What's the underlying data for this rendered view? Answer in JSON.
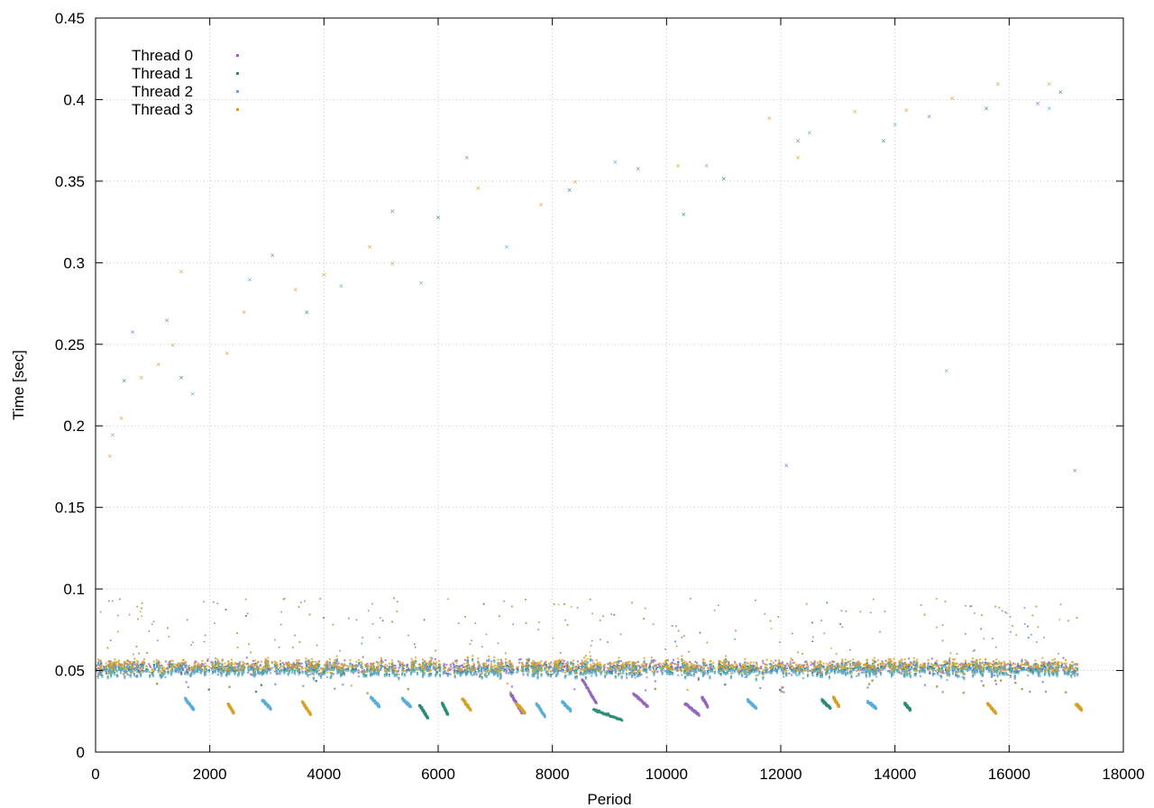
{
  "chart_data": {
    "type": "scatter",
    "title": "",
    "xlabel": "Period",
    "ylabel": "Time [sec]",
    "xlim": [
      0,
      18000
    ],
    "ylim": [
      0,
      0.45
    ],
    "x_ticks": [
      "0",
      "2000",
      "4000",
      "6000",
      "8000",
      "10000",
      "12000",
      "14000",
      "16000",
      "18000"
    ],
    "y_ticks": [
      "0",
      "0.05",
      "0.1",
      "0.15",
      "0.2",
      "0.25",
      "0.3",
      "0.35",
      "0.4",
      "0.45"
    ],
    "grid": true,
    "legend_position": "top-left",
    "series": [
      {
        "name": "Thread 0",
        "color": "#9467bd",
        "baseline": 0.052,
        "low_clusters": [
          {
            "x": [
              7250,
              7450
            ],
            "y": [
              0.036,
              0.024
            ]
          },
          {
            "x": [
              8500,
              8750
            ],
            "y": [
              0.045,
              0.03
            ]
          },
          {
            "x": [
              9400,
              9650
            ],
            "y": [
              0.036,
              0.028
            ]
          },
          {
            "x": [
              10300,
              10550
            ],
            "y": [
              0.03,
              0.023
            ]
          },
          {
            "x": [
              10600,
              10700
            ],
            "y": [
              0.034,
              0.028
            ]
          }
        ],
        "outliers": [
          {
            "x": 650,
            "y": 0.258
          },
          {
            "x": 1250,
            "y": 0.265
          },
          {
            "x": 3100,
            "y": 0.305
          },
          {
            "x": 5200,
            "y": 0.332
          },
          {
            "x": 6500,
            "y": 0.365
          },
          {
            "x": 9500,
            "y": 0.358
          },
          {
            "x": 12300,
            "y": 0.375
          },
          {
            "x": 14600,
            "y": 0.39
          },
          {
            "x": 16500,
            "y": 0.398
          },
          {
            "x": 12100,
            "y": 0.176
          },
          {
            "x": 17150,
            "y": 0.173
          }
        ]
      },
      {
        "name": "Thread 1",
        "color": "#2a8c78",
        "baseline": 0.051,
        "low_clusters": [
          {
            "x": [
              5650,
              5800
            ],
            "y": [
              0.029,
              0.021
            ]
          },
          {
            "x": [
              6050,
              6150
            ],
            "y": [
              0.03,
              0.023
            ]
          },
          {
            "x": [
              8700,
              9200
            ],
            "y": [
              0.026,
              0.02
            ]
          },
          {
            "x": [
              12700,
              12850
            ],
            "y": [
              0.032,
              0.027
            ]
          },
          {
            "x": [
              14150,
              14250
            ],
            "y": [
              0.03,
              0.026
            ]
          }
        ],
        "outliers": [
          {
            "x": 500,
            "y": 0.228
          },
          {
            "x": 1500,
            "y": 0.23
          },
          {
            "x": 3700,
            "y": 0.27
          },
          {
            "x": 6000,
            "y": 0.328
          },
          {
            "x": 8300,
            "y": 0.345
          },
          {
            "x": 10300,
            "y": 0.33
          },
          {
            "x": 11000,
            "y": 0.352
          },
          {
            "x": 13800,
            "y": 0.375
          },
          {
            "x": 15600,
            "y": 0.395
          },
          {
            "x": 16900,
            "y": 0.405
          }
        ]
      },
      {
        "name": "Thread 2",
        "color": "#5aaed6",
        "baseline": 0.05,
        "low_clusters": [
          {
            "x": [
              1550,
              1700
            ],
            "y": [
              0.033,
              0.026
            ]
          },
          {
            "x": [
              2900,
              3050
            ],
            "y": [
              0.032,
              0.027
            ]
          },
          {
            "x": [
              4800,
              4950
            ],
            "y": [
              0.034,
              0.028
            ]
          },
          {
            "x": [
              5350,
              5500
            ],
            "y": [
              0.033,
              0.028
            ]
          },
          {
            "x": [
              7700,
              7850
            ],
            "y": [
              0.03,
              0.022
            ]
          },
          {
            "x": [
              8150,
              8300
            ],
            "y": [
              0.031,
              0.026
            ]
          },
          {
            "x": [
              11400,
              11550
            ],
            "y": [
              0.032,
              0.027
            ]
          },
          {
            "x": [
              13500,
              13650
            ],
            "y": [
              0.031,
              0.027
            ]
          }
        ],
        "outliers": [
          {
            "x": 300,
            "y": 0.195
          },
          {
            "x": 1700,
            "y": 0.22
          },
          {
            "x": 2700,
            "y": 0.29
          },
          {
            "x": 4300,
            "y": 0.286
          },
          {
            "x": 5700,
            "y": 0.288
          },
          {
            "x": 7200,
            "y": 0.31
          },
          {
            "x": 9100,
            "y": 0.362
          },
          {
            "x": 10700,
            "y": 0.36
          },
          {
            "x": 12500,
            "y": 0.38
          },
          {
            "x": 14000,
            "y": 0.385
          },
          {
            "x": 14900,
            "y": 0.234
          },
          {
            "x": 16700,
            "y": 0.395
          }
        ]
      },
      {
        "name": "Thread 3",
        "color": "#d6a126",
        "baseline": 0.053,
        "low_clusters": [
          {
            "x": [
              2300,
              2400
            ],
            "y": [
              0.03,
              0.024
            ]
          },
          {
            "x": [
              3600,
              3750
            ],
            "y": [
              0.031,
              0.023
            ]
          },
          {
            "x": [
              6400,
              6550
            ],
            "y": [
              0.033,
              0.026
            ]
          },
          {
            "x": [
              7350,
              7500
            ],
            "y": [
              0.03,
              0.024
            ]
          },
          {
            "x": [
              12900,
              13000
            ],
            "y": [
              0.034,
              0.028
            ]
          },
          {
            "x": [
              15600,
              15750
            ],
            "y": [
              0.03,
              0.024
            ]
          },
          {
            "x": [
              17150,
              17250
            ],
            "y": [
              0.03,
              0.026
            ]
          }
        ],
        "outliers": [
          {
            "x": 250,
            "y": 0.182
          },
          {
            "x": 450,
            "y": 0.205
          },
          {
            "x": 800,
            "y": 0.23
          },
          {
            "x": 1100,
            "y": 0.238
          },
          {
            "x": 1350,
            "y": 0.25
          },
          {
            "x": 1500,
            "y": 0.295
          },
          {
            "x": 2300,
            "y": 0.245
          },
          {
            "x": 2600,
            "y": 0.27
          },
          {
            "x": 3500,
            "y": 0.284
          },
          {
            "x": 4000,
            "y": 0.293
          },
          {
            "x": 4800,
            "y": 0.31
          },
          {
            "x": 5200,
            "y": 0.3
          },
          {
            "x": 6700,
            "y": 0.346
          },
          {
            "x": 7800,
            "y": 0.336
          },
          {
            "x": 8400,
            "y": 0.35
          },
          {
            "x": 10200,
            "y": 0.36
          },
          {
            "x": 11800,
            "y": 0.389
          },
          {
            "x": 12300,
            "y": 0.365
          },
          {
            "x": 13300,
            "y": 0.393
          },
          {
            "x": 14200,
            "y": 0.394
          },
          {
            "x": 15000,
            "y": 0.401
          },
          {
            "x": 15800,
            "y": 0.41
          },
          {
            "x": 16700,
            "y": 0.41
          }
        ]
      }
    ]
  }
}
